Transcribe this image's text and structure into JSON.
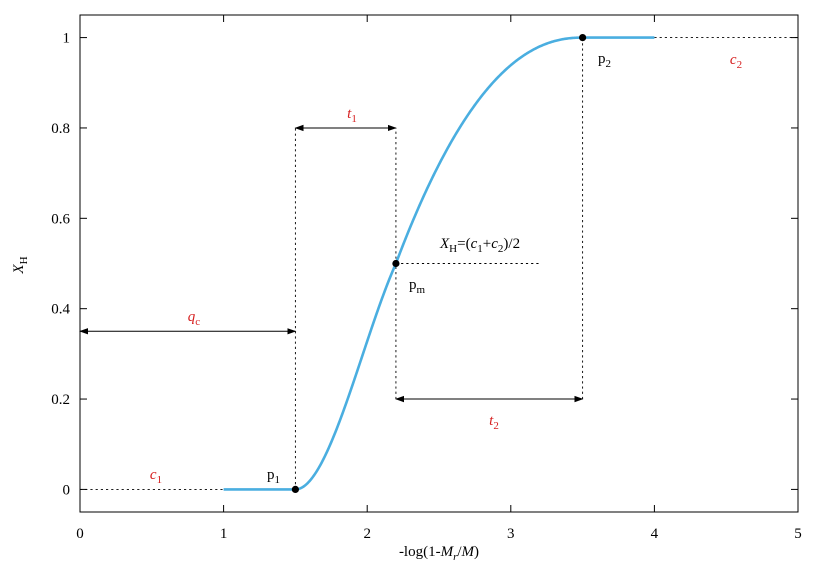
{
  "chart_data": {
    "type": "line",
    "xlabel": "-log(1-M_r/M)",
    "ylabel": "X_H",
    "xlim": [
      0,
      5
    ],
    "ylim": [
      -0.05,
      1.05
    ],
    "xticks": [
      0,
      1,
      2,
      3,
      4,
      5
    ],
    "yticks": [
      0,
      0.2,
      0.4,
      0.6,
      0.8,
      1
    ],
    "xtick_labels": [
      "0",
      "1",
      "2",
      "3",
      "4",
      "5"
    ],
    "ytick_labels": [
      "0",
      "0.2",
      "0.4",
      "0.6",
      "0.8",
      "1"
    ],
    "grid": false,
    "legend": "none",
    "colors": {
      "curve": "#4aaee0",
      "annotation": "#d62020",
      "axis": "#000000"
    },
    "series": [
      {
        "x": [
          1.0,
          1.5,
          1.6,
          1.7,
          1.8,
          1.9,
          2.0,
          2.1,
          2.2,
          2.4,
          2.6,
          2.8,
          3.0,
          3.2,
          3.4,
          3.5,
          4.0
        ],
        "y": [
          0.0,
          0.0,
          0.026,
          0.096,
          0.184,
          0.281,
          0.377,
          0.444,
          0.5,
          0.648,
          0.774,
          0.871,
          0.941,
          0.985,
          0.998,
          1.0,
          1.0
        ]
      }
    ],
    "points": {
      "p1": {
        "x": 1.5,
        "y": 0.0,
        "label": "p",
        "sub": "1"
      },
      "pm": {
        "x": 2.2,
        "y": 0.5,
        "label": "p",
        "sub": "m"
      },
      "p2": {
        "x": 3.5,
        "y": 1.0,
        "label": "p",
        "sub": "2"
      }
    },
    "annotations": {
      "c1": {
        "label": "c",
        "sub": "1"
      },
      "c2": {
        "label": "c",
        "sub": "2"
      },
      "qc": {
        "label": "q",
        "sub": "c",
        "y": 0.35,
        "x_from": 0,
        "x_to": 1.5
      },
      "t1": {
        "label": "t",
        "sub": "1",
        "y": 0.8,
        "x_from": 1.5,
        "x_to": 2.2
      },
      "t2": {
        "label": "t",
        "sub": "2",
        "y": 0.2,
        "x_from": 2.2,
        "x_to": 3.5
      },
      "midpoint": {
        "lhs": "X",
        "lhs_sub": "H",
        "rhs_prefix": "=(",
        "c1": "c",
        "c1_sub": "1",
        "plus": "+",
        "c2": "c",
        "c2_sub": "2",
        "rhs_suffix": ")/2"
      }
    },
    "xlabel_parts": {
      "prefix": "-log(1-",
      "m": "M",
      "m_sub": "r",
      "slash": "/",
      "M": "M",
      "suffix": ")"
    },
    "ylabel_parts": {
      "main": "X",
      "sub": "H"
    }
  }
}
